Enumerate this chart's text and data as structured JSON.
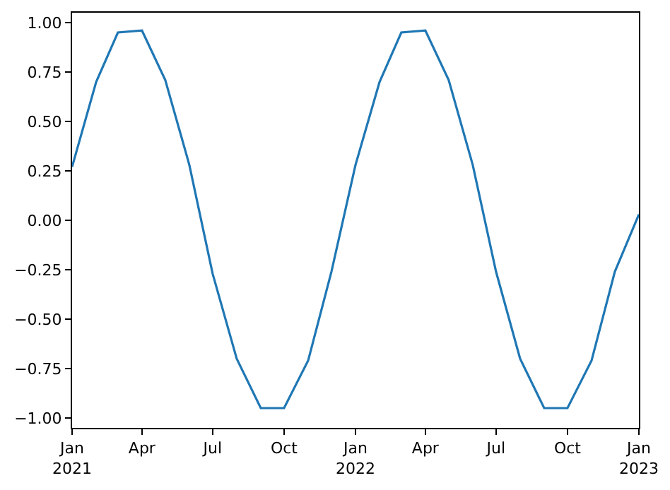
{
  "chart_data": {
    "type": "line",
    "x": [
      "2021-01",
      "2021-02",
      "2021-03",
      "2021-04",
      "2021-05",
      "2021-06",
      "2021-07",
      "2021-08",
      "2021-09",
      "2021-10",
      "2021-11",
      "2021-12",
      "2022-01",
      "2022-02",
      "2022-03",
      "2022-04",
      "2022-05",
      "2022-06",
      "2022-07",
      "2022-08",
      "2022-09",
      "2022-10",
      "2022-11",
      "2022-12",
      "2023-01"
    ],
    "series": [
      {
        "color": "#1f77b4",
        "values": [
          0.27,
          0.7,
          0.95,
          0.96,
          0.71,
          0.28,
          -0.27,
          -0.7,
          -0.95,
          -0.95,
          -0.71,
          -0.26,
          0.28,
          0.7,
          0.95,
          0.96,
          0.71,
          0.28,
          -0.26,
          -0.7,
          -0.95,
          -0.95,
          -0.71,
          -0.26,
          0.03
        ]
      }
    ],
    "xlim": [
      "2021-01",
      "2023-01"
    ],
    "xticks": [
      {
        "value": "2021-01",
        "label": "Jan\n2021"
      },
      {
        "value": "2021-04",
        "label": "Apr"
      },
      {
        "value": "2021-07",
        "label": "Jul"
      },
      {
        "value": "2021-10",
        "label": "Oct"
      },
      {
        "value": "2022-01",
        "label": "Jan\n2022"
      },
      {
        "value": "2022-04",
        "label": "Apr"
      },
      {
        "value": "2022-07",
        "label": "Jul"
      },
      {
        "value": "2022-10",
        "label": "Oct"
      },
      {
        "value": "2023-01",
        "label": "Jan\n2023"
      }
    ],
    "ylim": [
      -1.05,
      1.05
    ],
    "yticks": [
      {
        "value": -1,
        "label": "−1.00"
      },
      {
        "value": -0.75,
        "label": "−0.75"
      },
      {
        "value": -0.5,
        "label": "−0.50"
      },
      {
        "value": -0.25,
        "label": "−0.25"
      },
      {
        "value": 0,
        "label": "0.00"
      },
      {
        "value": 0.25,
        "label": "0.25"
      },
      {
        "value": 0.5,
        "label": "0.50"
      },
      {
        "value": 0.75,
        "label": "0.75"
      },
      {
        "value": 1,
        "label": "1.00"
      }
    ],
    "marker": "none",
    "line_style": "solid"
  }
}
